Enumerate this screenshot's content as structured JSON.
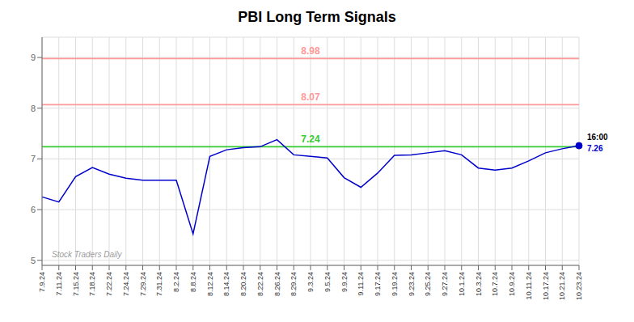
{
  "chart_data": {
    "type": "line",
    "title": "PBI Long Term Signals",
    "categories": [
      "7.9.24",
      "7.11.24",
      "7.15.24",
      "7.18.24",
      "7.22.24",
      "7.24.24",
      "7.29.24",
      "7.31.24",
      "8.2.24",
      "8.8.24",
      "8.12.24",
      "8.14.24",
      "8.20.24",
      "8.22.24",
      "8.26.24",
      "8.29.24",
      "9.3.24",
      "9.5.24",
      "9.9.24",
      "9.11.24",
      "9.17.24",
      "9.19.24",
      "9.23.24",
      "9.25.24",
      "9.27.24",
      "10.1.24",
      "10.3.24",
      "10.7.24",
      "10.9.24",
      "10.11.24",
      "10.17.24",
      "10.21.24",
      "10.23.24"
    ],
    "values": [
      6.25,
      6.15,
      6.65,
      6.83,
      6.7,
      6.62,
      6.58,
      6.58,
      6.58,
      5.52,
      7.05,
      7.18,
      7.22,
      7.24,
      7.38,
      7.08,
      7.05,
      7.02,
      6.63,
      6.44,
      6.72,
      7.07,
      7.08,
      7.12,
      7.16,
      7.08,
      6.82,
      6.78,
      6.82,
      6.96,
      7.12,
      7.2,
      7.26
    ],
    "color": "#0000cc",
    "ylim": [
      4.9,
      9.4
    ],
    "yticks": [
      5,
      6,
      7,
      8,
      9
    ],
    "grid": true,
    "hlines": [
      {
        "value": 7.24,
        "label": "7.24",
        "color": "#33cc33"
      },
      {
        "value": 8.07,
        "label": "8.07",
        "color": "#ff9999"
      },
      {
        "value": 8.98,
        "label": "8.98",
        "color": "#ff9999"
      }
    ],
    "annotations": [
      {
        "text": "Stock Traders Daily"
      },
      {
        "text": "16:00"
      },
      {
        "text": "7.26"
      }
    ]
  }
}
